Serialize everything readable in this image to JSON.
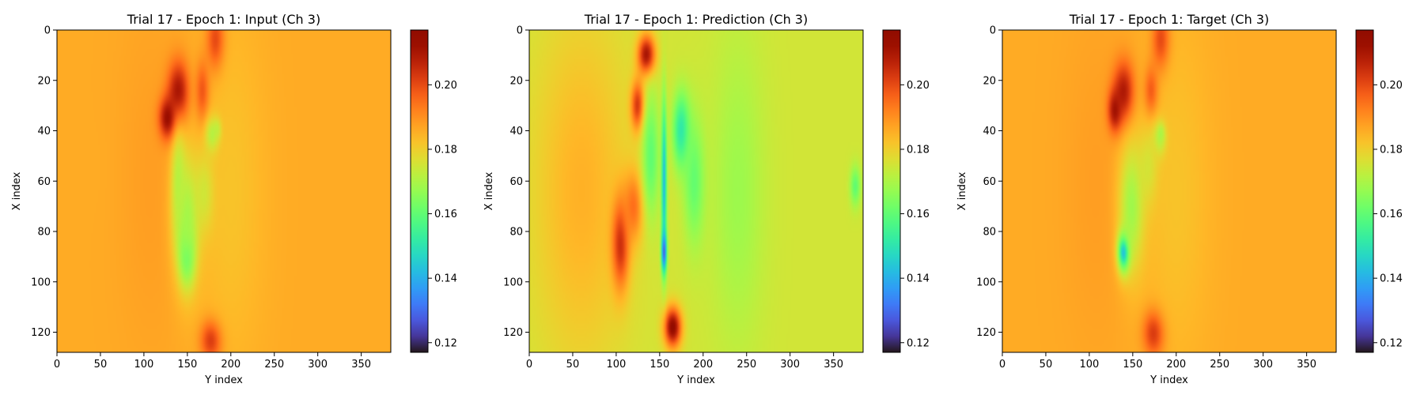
{
  "chart_data": [
    {
      "type": "heatmap",
      "title": "Trial 17 - Epoch 1: Input (Ch 3)",
      "xlabel": "Y index",
      "ylabel": "X index",
      "x_range": [
        0,
        384
      ],
      "y_range": [
        0,
        128
      ],
      "y_inverted": true,
      "x_ticks": [
        0,
        50,
        100,
        150,
        200,
        250,
        300,
        350
      ],
      "y_ticks": [
        0,
        20,
        40,
        60,
        80,
        100,
        120
      ],
      "colormap": "turbo",
      "colorbar_range": [
        0.117,
        0.217
      ],
      "colorbar_ticks": [
        "0.12",
        "0.14",
        "0.16",
        "0.18",
        "0.20"
      ],
      "background_value": 0.186,
      "features": [
        {
          "y": 110,
          "x": 60,
          "value": 0.188,
          "ry": 40,
          "rx": 70
        },
        {
          "y": 40,
          "x": 55,
          "value": 0.186,
          "ry": 18,
          "rx": 25
        },
        {
          "y": 183,
          "x": 5,
          "value": 0.212,
          "ry": 10,
          "rx": 12
        },
        {
          "y": 140,
          "x": 25,
          "value": 0.214,
          "ry": 12,
          "rx": 12
        },
        {
          "y": 128,
          "x": 35,
          "value": 0.215,
          "ry": 10,
          "rx": 8
        },
        {
          "y": 168,
          "x": 25,
          "value": 0.208,
          "ry": 8,
          "rx": 12
        },
        {
          "y": 178,
          "x": 123,
          "value": 0.213,
          "ry": 12,
          "rx": 8
        },
        {
          "y": 180,
          "x": 42,
          "value": 0.147,
          "ry": 8,
          "rx": 7
        },
        {
          "y": 185,
          "x": 40,
          "value": 0.142,
          "ry": 4,
          "rx": 4
        },
        {
          "y": 172,
          "x": 65,
          "value": 0.165,
          "ry": 12,
          "rx": 15
        },
        {
          "y": 150,
          "x": 88,
          "value": 0.147,
          "ry": 9,
          "rx": 12
        },
        {
          "y": 150,
          "x": 75,
          "value": 0.165,
          "ry": 15,
          "rx": 25
        },
        {
          "y": 140,
          "x": 60,
          "value": 0.17,
          "ry": 8,
          "rx": 20
        },
        {
          "y": 200,
          "x": 64,
          "value": 0.182,
          "ry": 40,
          "rx": 70
        }
      ]
    },
    {
      "type": "heatmap",
      "title": "Trial 17 - Epoch 1: Prediction (Ch 3)",
      "xlabel": "Y index",
      "ylabel": "X index",
      "x_range": [
        0,
        384
      ],
      "y_range": [
        0,
        128
      ],
      "y_inverted": true,
      "x_ticks": [
        0,
        50,
        100,
        150,
        200,
        250,
        300,
        350
      ],
      "y_ticks": [
        0,
        20,
        40,
        60,
        80,
        100,
        120
      ],
      "colormap": "turbo",
      "colorbar_range": [
        0.117,
        0.217
      ],
      "colorbar_ticks": [
        "0.12",
        "0.14",
        "0.16",
        "0.18",
        "0.20"
      ],
      "background_value": 0.175,
      "features": [
        {
          "y": 60,
          "x": 64,
          "value": 0.185,
          "ry": 55,
          "rx": 70
        },
        {
          "y": 135,
          "x": 10,
          "value": 0.213,
          "ry": 10,
          "rx": 8
        },
        {
          "y": 125,
          "x": 30,
          "value": 0.205,
          "ry": 8,
          "rx": 10
        },
        {
          "y": 105,
          "x": 85,
          "value": 0.205,
          "ry": 10,
          "rx": 18
        },
        {
          "y": 120,
          "x": 70,
          "value": 0.195,
          "ry": 12,
          "rx": 14
        },
        {
          "y": 165,
          "x": 118,
          "value": 0.215,
          "ry": 10,
          "rx": 8
        },
        {
          "y": 155,
          "x": 60,
          "value": 0.14,
          "ry": 3,
          "rx": 30
        },
        {
          "y": 155,
          "x": 88,
          "value": 0.128,
          "ry": 3,
          "rx": 8
        },
        {
          "y": 175,
          "x": 40,
          "value": 0.15,
          "ry": 10,
          "rx": 15
        },
        {
          "y": 190,
          "x": 60,
          "value": 0.16,
          "ry": 12,
          "rx": 25
        },
        {
          "y": 140,
          "x": 50,
          "value": 0.16,
          "ry": 10,
          "rx": 25
        },
        {
          "y": 240,
          "x": 64,
          "value": 0.168,
          "ry": 30,
          "rx": 60
        },
        {
          "y": 375,
          "x": 62,
          "value": 0.16,
          "ry": 6,
          "rx": 8
        }
      ]
    },
    {
      "type": "heatmap",
      "title": "Trial 17 - Epoch 1: Target (Ch 3)",
      "xlabel": "Y index",
      "ylabel": "X index",
      "x_range": [
        0,
        384
      ],
      "y_range": [
        0,
        128
      ],
      "y_inverted": true,
      "x_ticks": [
        0,
        50,
        100,
        150,
        200,
        250,
        300,
        350
      ],
      "y_ticks": [
        0,
        20,
        40,
        60,
        80,
        100,
        120
      ],
      "colormap": "turbo",
      "colorbar_range": [
        0.117,
        0.217
      ],
      "colorbar_ticks": [
        "0.12",
        "0.14",
        "0.16",
        "0.18",
        "0.20"
      ],
      "background_value": 0.186,
      "features": [
        {
          "y": 110,
          "x": 60,
          "value": 0.188,
          "ry": 40,
          "rx": 70
        },
        {
          "y": 183,
          "x": 5,
          "value": 0.212,
          "ry": 10,
          "rx": 12
        },
        {
          "y": 140,
          "x": 25,
          "value": 0.212,
          "ry": 12,
          "rx": 12
        },
        {
          "y": 130,
          "x": 32,
          "value": 0.213,
          "ry": 8,
          "rx": 8
        },
        {
          "y": 172,
          "x": 25,
          "value": 0.21,
          "ry": 8,
          "rx": 10
        },
        {
          "y": 175,
          "x": 120,
          "value": 0.213,
          "ry": 12,
          "rx": 9
        },
        {
          "y": 182,
          "x": 44,
          "value": 0.14,
          "ry": 8,
          "rx": 7
        },
        {
          "y": 183,
          "x": 42,
          "value": 0.128,
          "ry": 4,
          "rx": 4
        },
        {
          "y": 140,
          "x": 88,
          "value": 0.138,
          "ry": 7,
          "rx": 8
        },
        {
          "y": 140,
          "x": 88,
          "value": 0.125,
          "ry": 3,
          "rx": 3
        },
        {
          "y": 150,
          "x": 70,
          "value": 0.165,
          "ry": 15,
          "rx": 25
        },
        {
          "y": 170,
          "x": 55,
          "value": 0.168,
          "ry": 12,
          "rx": 15
        },
        {
          "y": 200,
          "x": 64,
          "value": 0.182,
          "ry": 40,
          "rx": 70
        }
      ]
    }
  ]
}
